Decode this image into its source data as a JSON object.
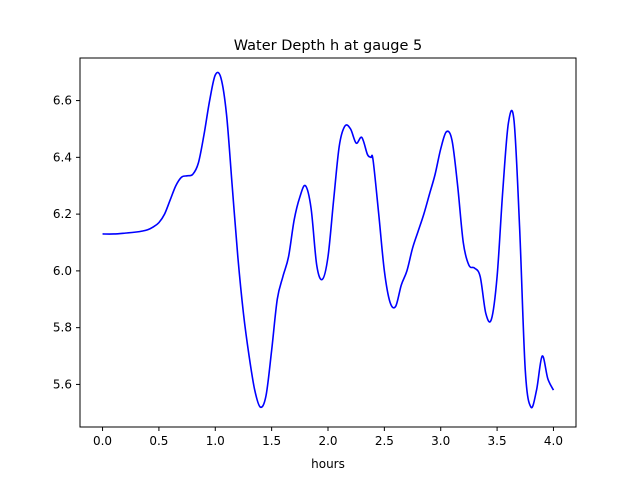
{
  "chart_data": {
    "type": "line",
    "title": "Water Depth h at gauge 5",
    "xlabel": "hours",
    "ylabel": "",
    "xlim": [
      -0.2,
      4.2
    ],
    "ylim": [
      5.45,
      6.75
    ],
    "x_ticks": [
      0.0,
      0.5,
      1.0,
      1.5,
      2.0,
      2.5,
      3.0,
      3.5,
      4.0
    ],
    "x_tick_labels": [
      "0.0",
      "0.5",
      "1.0",
      "1.5",
      "2.0",
      "2.5",
      "3.0",
      "3.5",
      "4.0"
    ],
    "y_ticks": [
      5.6,
      5.8,
      6.0,
      6.2,
      6.4,
      6.6
    ],
    "y_tick_labels": [
      "5.6",
      "5.8",
      "6.0",
      "6.2",
      "6.4",
      "6.6"
    ],
    "grid": false,
    "line_color": "#0000ff",
    "series": [
      {
        "x": [
          0.0,
          0.1,
          0.2,
          0.3,
          0.35,
          0.4,
          0.45,
          0.5,
          0.55,
          0.6,
          0.65,
          0.7,
          0.75,
          0.8,
          0.85,
          0.9,
          0.95,
          1.0,
          1.05,
          1.1,
          1.15,
          1.2,
          1.25,
          1.3,
          1.35,
          1.4,
          1.45,
          1.5,
          1.55,
          1.6,
          1.65,
          1.7,
          1.75,
          1.8,
          1.85,
          1.9,
          1.95,
          2.0,
          2.05,
          2.1,
          2.15,
          2.2,
          2.25,
          2.3,
          2.35,
          2.38,
          2.4,
          2.45,
          2.5,
          2.55,
          2.6,
          2.65,
          2.7,
          2.75,
          2.8,
          2.85,
          2.9,
          2.95,
          3.0,
          3.05,
          3.1,
          3.15,
          3.2,
          3.25,
          3.3,
          3.35,
          3.4,
          3.45,
          3.5,
          3.55,
          3.6,
          3.65,
          3.7,
          3.75,
          3.8,
          3.85,
          3.9,
          3.95,
          4.0
        ],
        "y": [
          6.13,
          6.13,
          6.133,
          6.137,
          6.14,
          6.145,
          6.155,
          6.17,
          6.2,
          6.25,
          6.3,
          6.33,
          6.335,
          6.34,
          6.38,
          6.48,
          6.6,
          6.69,
          6.68,
          6.55,
          6.3,
          6.05,
          5.85,
          5.7,
          5.58,
          5.52,
          5.56,
          5.72,
          5.9,
          5.98,
          6.05,
          6.18,
          6.26,
          6.3,
          6.22,
          6.02,
          5.97,
          6.05,
          6.25,
          6.44,
          6.51,
          6.5,
          6.45,
          6.47,
          6.41,
          6.4,
          6.39,
          6.2,
          6.0,
          5.89,
          5.875,
          5.95,
          6.0,
          6.08,
          6.14,
          6.2,
          6.27,
          6.34,
          6.43,
          6.49,
          6.46,
          6.3,
          6.1,
          6.02,
          6.01,
          5.98,
          5.85,
          5.83,
          5.98,
          6.28,
          6.52,
          6.53,
          6.15,
          5.65,
          5.52,
          5.58,
          5.7,
          5.62,
          5.58
        ]
      }
    ]
  }
}
